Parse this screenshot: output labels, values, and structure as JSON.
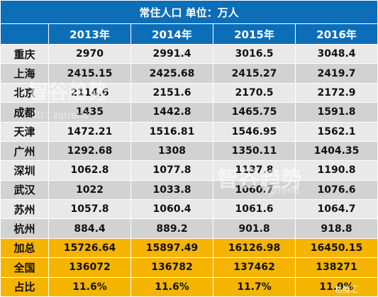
{
  "title": "常住人口    单位：万人",
  "years": [
    "2013年",
    "2014年",
    "2015年",
    "2016年"
  ],
  "rows": [
    {
      "city": "重庆",
      "v": [
        "2970",
        "2991.4",
        "3016.5",
        "3048.4"
      ]
    },
    {
      "city": "上海",
      "v": [
        "2415.15",
        "2425.68",
        "2415.27",
        "2419.7"
      ]
    },
    {
      "city": "北京",
      "v": [
        "2114.6",
        "2151.6",
        "2170.5",
        "2172.9"
      ]
    },
    {
      "city": "成都",
      "v": [
        "1435",
        "1442.8",
        "1465.75",
        "1591.8"
      ]
    },
    {
      "city": "天津",
      "v": [
        "1472.21",
        "1516.81",
        "1546.95",
        "1562.1"
      ]
    },
    {
      "city": "广州",
      "v": [
        "1292.68",
        "1308",
        "1350.11",
        "1404.35"
      ]
    },
    {
      "city": "深圳",
      "v": [
        "1062.8",
        "1077.8",
        "1137.8",
        "1190.8"
      ]
    },
    {
      "city": "武汉",
      "v": [
        "1022",
        "1033.8",
        "1060.7",
        "1076.6"
      ]
    },
    {
      "city": "苏州",
      "v": [
        "1057.8",
        "1060.4",
        "1061.6",
        "1064.7"
      ]
    },
    {
      "city": "杭州",
      "v": [
        "884.4",
        "889.2",
        "901.8",
        "918.8"
      ]
    }
  ],
  "summary": [
    {
      "city": "加总",
      "v": [
        "15726.64",
        "15897.49",
        "16126.98",
        "16450.15"
      ]
    },
    {
      "city": "全国",
      "v": [
        "136072",
        "136782",
        "137462",
        "138271"
      ]
    },
    {
      "city": "占比",
      "v": [
        "11.6%",
        "11.6%",
        "11.7%",
        "11.9%"
      ]
    }
  ],
  "watermarks": {
    "wm1": "智谷趋势",
    "wm2": "ID：zgtrend",
    "wm3": "智谷趋势",
    "wm4": "zgtrend",
    "wm5": "格隆汇"
  }
}
